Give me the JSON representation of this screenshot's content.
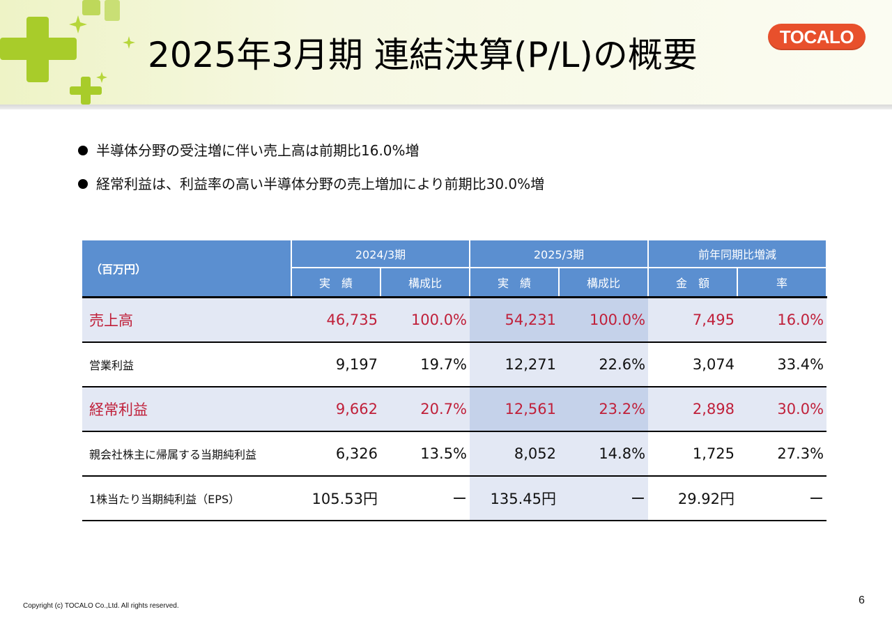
{
  "header": {
    "title": "2025年3月期  連結決算(P/L)の概要",
    "logo_text": "TOCALO",
    "accent_color": "#e8502c",
    "decoration_color": "#a8cc2a"
  },
  "bullets": [
    "半導体分野の受注増に伴い売上高は前期比16.0%増",
    "経常利益は、利益率の高い半導体分野の売上増加により前期比30.0%増"
  ],
  "table": {
    "unit_label": "（百万円）",
    "group_headers": [
      "2024/3期",
      "2025/3期",
      "前年同期比増減"
    ],
    "sub_headers": [
      "実　績",
      "構成比",
      "実　績",
      "構成比",
      "金　額",
      "率"
    ],
    "header_color": "#5b8fd0",
    "highlight_text_color": "#c0203a",
    "rows": [
      {
        "label": "売上高",
        "values": [
          "46,735",
          "100.0%",
          "54,231",
          "100.0%",
          "7,495",
          "16.0%"
        ]
      },
      {
        "label": "営業利益",
        "values": [
          "9,197",
          "19.7%",
          "12,271",
          "22.6%",
          "3,074",
          "33.4%"
        ]
      },
      {
        "label": "経常利益",
        "values": [
          "9,662",
          "20.7%",
          "12,561",
          "23.2%",
          "2,898",
          "30.0%"
        ]
      },
      {
        "label": "親会社株主に帰属する当期純利益",
        "values": [
          "6,326",
          "13.5%",
          "8,052",
          "14.8%",
          "1,725",
          "27.3%"
        ]
      },
      {
        "label": "1株当たり当期純利益（EPS）",
        "values": [
          "105.53円",
          "ー",
          "135.45円",
          "ー",
          "29.92円",
          "ー"
        ]
      }
    ]
  },
  "footer": {
    "copyright": "Copyright (c) TOCALO Co.,Ltd. All rights reserved.",
    "page_number": "6"
  }
}
